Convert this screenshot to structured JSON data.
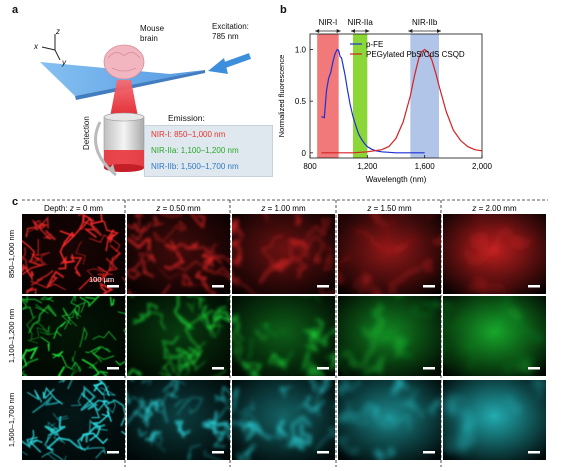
{
  "panel_a": {
    "letter": "a",
    "axis_z": "z",
    "axis_x": "x",
    "axis_y": "y",
    "mouse_brain": [
      "Mouse",
      "brain"
    ],
    "excitation": [
      "Excitation:",
      "785 nm"
    ],
    "detection": "Detection",
    "emission_title": "Emission:",
    "emission_lines": [
      {
        "text": "NIR-I: 850–1,000 nm",
        "color": "#e8332c"
      },
      {
        "text": "NIR-IIa: 1,100–1,200 nm",
        "color": "#2aa82a"
      },
      {
        "text": "NIR-IIb: 1,500–1,700 nm",
        "color": "#2f79c4"
      }
    ],
    "colors": {
      "beam_red": "#e8333b",
      "plane_blue": "#5ea5e8",
      "arrow_blue": "#3d8fdc",
      "brain_pink": "#f1b6bf"
    }
  },
  "panel_b": {
    "letter": "b",
    "band_labels": [
      "NIR-I",
      "NIR-IIa",
      "NIR-IIb"
    ],
    "chart_data": {
      "type": "line",
      "xlabel": "Wavelength (nm)",
      "ylabel": "Normalized fluorescence",
      "xlim": [
        800,
        2000
      ],
      "ylim": [
        -0.05,
        1.15
      ],
      "xticks": [
        800,
        1200,
        1600,
        2000
      ],
      "xtick_labels": [
        "800",
        "1,200",
        "1,600",
        "2,000"
      ],
      "yticks": [
        0,
        0.5,
        1.0
      ],
      "ytick_labels": [
        "0",
        "0.5",
        "1.0"
      ],
      "legend_position": "top-right",
      "bands": [
        {
          "name": "NIR-I",
          "range": [
            850,
            1000
          ],
          "color": "#f06a6a"
        },
        {
          "name": "NIR-IIa",
          "range": [
            1100,
            1200
          ],
          "color": "#7ed321"
        },
        {
          "name": "NIR-IIb",
          "range": [
            1500,
            1700
          ],
          "color": "#a9bfe6"
        }
      ],
      "series": [
        {
          "name": "p-FE",
          "color": "#1f2fd6",
          "x": [
            880,
            900,
            915,
            930,
            945,
            960,
            975,
            990,
            1000,
            1010,
            1020,
            1030,
            1045,
            1060,
            1080,
            1100,
            1120,
            1140,
            1160,
            1180,
            1200,
            1230,
            1260,
            1300,
            1350,
            1400,
            1450,
            1500,
            1550,
            1600
          ],
          "y": [
            0.35,
            0.34,
            0.6,
            0.72,
            0.78,
            0.88,
            0.96,
            1.0,
            0.99,
            0.93,
            0.92,
            0.85,
            0.75,
            0.62,
            0.47,
            0.35,
            0.26,
            0.18,
            0.13,
            0.09,
            0.06,
            0.035,
            0.02,
            0.01,
            0.005,
            0.0,
            0.0,
            0.0,
            0.0,
            0.0
          ]
        },
        {
          "name": "PEGylated PbS/CdS CSQD",
          "color": "#d42222",
          "x": [
            880,
            950,
            1000,
            1100,
            1200,
            1300,
            1350,
            1400,
            1450,
            1500,
            1530,
            1560,
            1580,
            1600,
            1620,
            1650,
            1680,
            1700,
            1750,
            1800,
            1850,
            1900,
            1950,
            2000
          ],
          "y": [
            0.0,
            0.0,
            0.0,
            0.0,
            0.01,
            0.03,
            0.06,
            0.14,
            0.3,
            0.55,
            0.75,
            0.92,
            0.98,
            1.0,
            0.98,
            0.9,
            0.76,
            0.65,
            0.4,
            0.22,
            0.12,
            0.06,
            0.03,
            0.02
          ]
        }
      ]
    }
  },
  "panel_c": {
    "letter": "c",
    "depth_labels": [
      {
        "prefix": "Depth: ",
        "var": "z",
        "value": " = 0 mm"
      },
      {
        "prefix": "",
        "var": "z",
        "value": " = 0.50 mm"
      },
      {
        "prefix": "",
        "var": "z",
        "value": " = 1.00 mm"
      },
      {
        "prefix": "",
        "var": "z",
        "value": " = 1.50 mm"
      },
      {
        "prefix": "",
        "var": "z",
        "value": " = 2.00 mm"
      }
    ],
    "row_labels": [
      "850–1,000 nm",
      "1,100–1,200 nm",
      "1,500–1,700 nm"
    ],
    "scale_bar_label": "100 µm",
    "row_colors": [
      "#ff2a2a",
      "#1fe23a",
      "#2ee8ee"
    ]
  }
}
